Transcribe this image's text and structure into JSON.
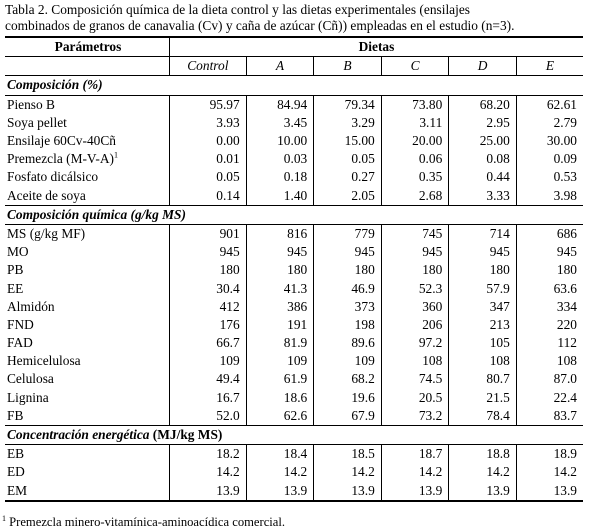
{
  "caption": {
    "line1": "Tabla 2. Composición química de la dieta control y las dietas experimentales (ensilajes",
    "line2": "combinados de granos de canavalia (Cv) y caña de azúcar (Cñ)) empleadas en el estudio (n=3)."
  },
  "header": {
    "param_label": "Parámetros",
    "diets_label": "Dietas",
    "diets": [
      "Control",
      "A",
      "B",
      "C",
      "D",
      "E"
    ]
  },
  "sections": [
    {
      "title": "Composición (%)",
      "rows": [
        {
          "label": "Pienso B",
          "sup": "",
          "values": [
            "95.97",
            "84.94",
            "79.34",
            "73.80",
            "68.20",
            "62.61"
          ]
        },
        {
          "label": "Soya pellet",
          "sup": "",
          "values": [
            "3.93",
            "3.45",
            "3.29",
            "3.11",
            "2.95",
            "2.79"
          ]
        },
        {
          "label": "Ensilaje 60Cv-40Cñ",
          "sup": "",
          "values": [
            "0.00",
            "10.00",
            "15.00",
            "20.00",
            "25.00",
            "30.00"
          ]
        },
        {
          "label": "Premezcla (M-V-A)",
          "sup": "1",
          "values": [
            "0.01",
            "0.03",
            "0.05",
            "0.06",
            "0.08",
            "0.09"
          ]
        },
        {
          "label": "Fosfato dicálsico",
          "sup": "",
          "values": [
            "0.05",
            "0.18",
            "0.27",
            "0.35",
            "0.44",
            "0.53"
          ]
        },
        {
          "label": "Aceite de soya",
          "sup": "",
          "values": [
            "0.14",
            "1.40",
            "2.05",
            "2.68",
            "3.33",
            "3.98"
          ]
        }
      ]
    },
    {
      "title": "Composición química (g/kg MS)",
      "rows": [
        {
          "label": "MS (g/kg MF)",
          "sup": "",
          "values": [
            "901",
            "816",
            "779",
            "745",
            "714",
            "686"
          ]
        },
        {
          "label": "MO",
          "sup": "",
          "values": [
            "945",
            "945",
            "945",
            "945",
            "945",
            "945"
          ]
        },
        {
          "label": "PB",
          "sup": "",
          "values": [
            "180",
            "180",
            "180",
            "180",
            "180",
            "180"
          ]
        },
        {
          "label": "EE",
          "sup": "",
          "values": [
            "30.4",
            "41.3",
            "46.9",
            "52.3",
            "57.9",
            "63.6"
          ]
        },
        {
          "label": "Almidón",
          "sup": "",
          "values": [
            "412",
            "386",
            "373",
            "360",
            "347",
            "334"
          ]
        },
        {
          "label": "FND",
          "sup": "",
          "values": [
            "176",
            "191",
            "198",
            "206",
            "213",
            "220"
          ]
        },
        {
          "label": "FAD",
          "sup": "",
          "values": [
            "66.7",
            "81.9",
            "89.6",
            "97.2",
            "105",
            "112"
          ]
        },
        {
          "label": "Hemicelulosa",
          "sup": "",
          "values": [
            "109",
            "109",
            "109",
            "108",
            "108",
            "108"
          ]
        },
        {
          "label": "Celulosa",
          "sup": "",
          "values": [
            "49.4",
            "61.9",
            "68.2",
            "74.5",
            "80.7",
            "87.0"
          ]
        },
        {
          "label": "Lignina",
          "sup": "",
          "values": [
            "16.7",
            "18.6",
            "19.6",
            "20.5",
            "21.5",
            "22.4"
          ]
        },
        {
          "label": "FB",
          "sup": "",
          "values": [
            "52.0",
            "62.6",
            "67.9",
            "73.2",
            "78.4",
            "83.7"
          ]
        }
      ]
    },
    {
      "title": "Concentración energética",
      "title_unit": " (MJ/kg MS)",
      "rows": [
        {
          "label": "EB",
          "sup": "",
          "values": [
            "18.2",
            "18.4",
            "18.5",
            "18.7",
            "18.8",
            "18.9"
          ]
        },
        {
          "label": "ED",
          "sup": "",
          "values": [
            "14.2",
            "14.2",
            "14.2",
            "14.2",
            "14.2",
            "14.2"
          ]
        },
        {
          "label": "EM",
          "sup": "",
          "values": [
            "13.9",
            "13.9",
            "13.9",
            "13.9",
            "13.9",
            "13.9"
          ]
        }
      ]
    }
  ],
  "footnote": {
    "mark": "1",
    "text": " Premezcla minero-vitamínica-aminoacídica comercial."
  }
}
